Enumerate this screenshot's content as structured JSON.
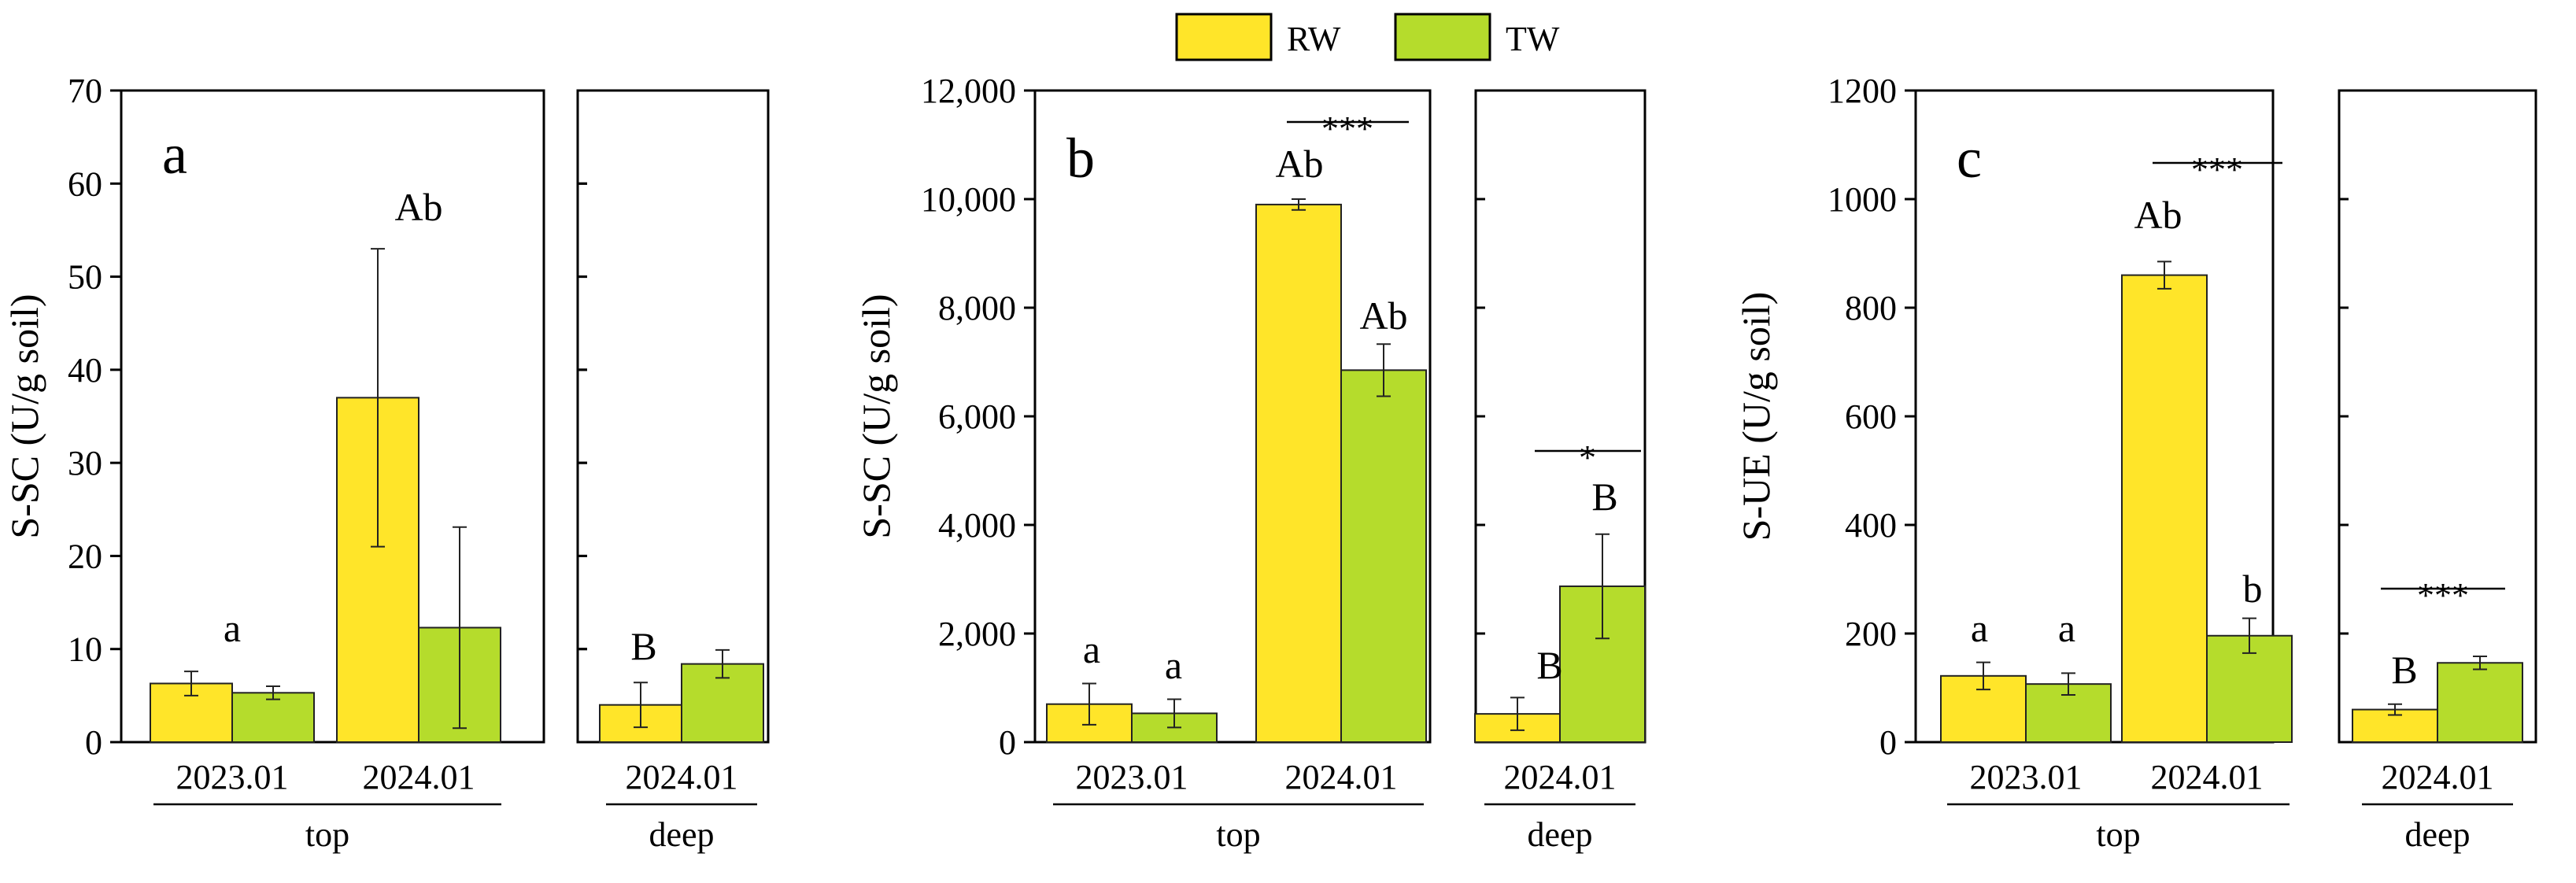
{
  "legend": [
    {
      "name": "RW",
      "color": "#FFE529"
    },
    {
      "name": "TW",
      "color": "#B5DC2C"
    }
  ],
  "chart_data": [
    {
      "type": "bar",
      "panel_label": "a",
      "ylabel": "S-SC (U/g soil)",
      "ylim": [
        0,
        70
      ],
      "yticks": [
        "0",
        "10",
        "20",
        "30",
        "40",
        "50",
        "60",
        "70"
      ],
      "categories": [
        "2023.01",
        "2024.01",
        "2024.01"
      ],
      "groups": [
        {
          "label": "top",
          "categories": [
            0,
            1
          ]
        },
        {
          "label": "deep",
          "categories": [
            2
          ]
        }
      ],
      "series": [
        {
          "name": "RW",
          "values": [
            6.3,
            37.0,
            4.0
          ],
          "errors": [
            1.3,
            16.0,
            2.4
          ]
        },
        {
          "name": "TW",
          "values": [
            5.3,
            12.3,
            8.4
          ],
          "errors": [
            0.7,
            10.8,
            1.5
          ]
        }
      ],
      "annotations": [
        {
          "category": 0,
          "text": "a"
        },
        {
          "category": 1,
          "text": "Ab"
        },
        {
          "category": 2,
          "text": "B"
        }
      ]
    },
    {
      "type": "bar",
      "panel_label": "b",
      "ylabel": "S-SC (U/g soil)",
      "ylim": [
        0,
        12000
      ],
      "yticks": [
        "0",
        "2,000",
        "4,000",
        "6,000",
        "8,000",
        "10,000",
        "12,000"
      ],
      "categories": [
        "2023.01",
        "2024.01",
        "2024.01"
      ],
      "groups": [
        {
          "label": "top",
          "categories": [
            0,
            1
          ]
        },
        {
          "label": "deep",
          "categories": [
            2
          ]
        }
      ],
      "series": [
        {
          "name": "RW",
          "values": [
            700,
            9900,
            520
          ],
          "errors": [
            380,
            100,
            300
          ]
        },
        {
          "name": "TW",
          "values": [
            530,
            6850,
            2870
          ],
          "errors": [
            260,
            480,
            960
          ]
        }
      ],
      "annotations": [
        {
          "category": 0,
          "text": "a"
        },
        {
          "category": 0,
          "text": "a"
        },
        {
          "category": 1,
          "text": "Ab"
        },
        {
          "category": 1,
          "text": "Ab"
        },
        {
          "category": 1,
          "text": "***"
        },
        {
          "category": 2,
          "text": "B"
        },
        {
          "category": 2,
          "text": "B"
        },
        {
          "category": 2,
          "text": "*"
        }
      ]
    },
    {
      "type": "bar",
      "panel_label": "c",
      "ylabel": "S-UE (U/g soil)",
      "ylim": [
        0,
        1200
      ],
      "yticks": [
        "0",
        "200",
        "400",
        "600",
        "800",
        "1000",
        "1200"
      ],
      "categories": [
        "2023.01",
        "2024.01",
        "2024.01"
      ],
      "groups": [
        {
          "label": "top",
          "categories": [
            0,
            1
          ]
        },
        {
          "label": "deep",
          "categories": [
            2
          ]
        }
      ],
      "series": [
        {
          "name": "RW",
          "values": [
            122,
            860,
            60
          ],
          "errors": [
            25,
            25,
            10
          ]
        },
        {
          "name": "TW",
          "values": [
            107,
            196,
            146
          ],
          "errors": [
            20,
            32,
            12
          ]
        }
      ],
      "annotations": [
        {
          "category": 0,
          "text": "a"
        },
        {
          "category": 0,
          "text": "a"
        },
        {
          "category": 1,
          "text": "Ab"
        },
        {
          "category": 1,
          "text": "b"
        },
        {
          "category": 1,
          "text": "***"
        },
        {
          "category": 2,
          "text": "B"
        },
        {
          "category": 2,
          "text": "***"
        }
      ]
    }
  ]
}
